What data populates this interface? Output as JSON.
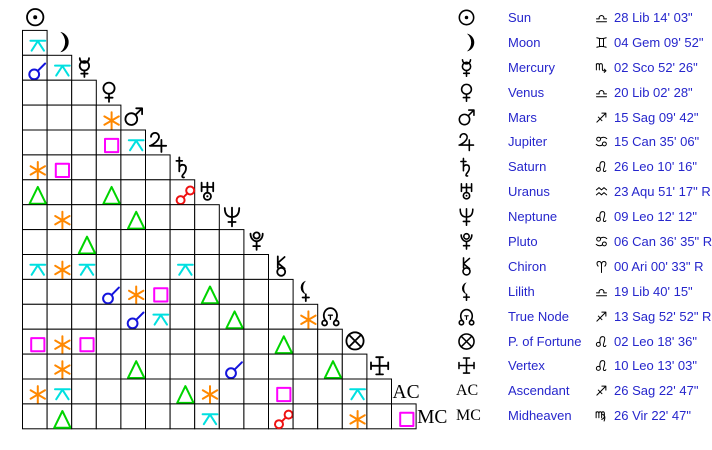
{
  "chart_data": {
    "type": "table",
    "description": "Astrological aspect grid (aspectarian) with planetary positions",
    "bodies": [
      {
        "id": "sun",
        "name": "Sun",
        "sign": "libra",
        "position": "28 Lib 14' 03\""
      },
      {
        "id": "moon",
        "name": "Moon",
        "sign": "gemini",
        "position": "04 Gem 09' 52\""
      },
      {
        "id": "mercury",
        "name": "Mercury",
        "sign": "scorpio",
        "position": "02 Sco 52' 26\""
      },
      {
        "id": "venus",
        "name": "Venus",
        "sign": "libra",
        "position": "20 Lib 02' 28\""
      },
      {
        "id": "mars",
        "name": "Mars",
        "sign": "sagittarius",
        "position": "15 Sag 09' 42\""
      },
      {
        "id": "jupiter",
        "name": "Jupiter",
        "sign": "cancer",
        "position": "15 Can 35' 06\""
      },
      {
        "id": "saturn",
        "name": "Saturn",
        "sign": "leo",
        "position": "26 Leo 10' 16\""
      },
      {
        "id": "uranus",
        "name": "Uranus",
        "sign": "aquarius",
        "position": "23 Aqu 51' 17\" R"
      },
      {
        "id": "neptune",
        "name": "Neptune",
        "sign": "leo",
        "position": "09 Leo 12' 12\""
      },
      {
        "id": "pluto",
        "name": "Pluto",
        "sign": "cancer",
        "position": "06 Can 36' 35\" R"
      },
      {
        "id": "chiron",
        "name": "Chiron",
        "sign": "aries",
        "position": "00 Ari 00' 33\" R"
      },
      {
        "id": "lilith",
        "name": "Lilith",
        "sign": "libra",
        "position": "19 Lib 40' 15\""
      },
      {
        "id": "truenode",
        "name": "True Node",
        "sign": "sagittarius",
        "position": "13 Sag 52' 52\" R"
      },
      {
        "id": "fortune",
        "name": "P. of Fortune",
        "sign": "leo",
        "position": "02 Leo 18' 36\""
      },
      {
        "id": "vertex",
        "name": "Vertex",
        "sign": "leo",
        "position": "10 Leo 13' 03\""
      },
      {
        "id": "ascendant",
        "name": "Ascendant",
        "sign": "sagittarius",
        "position": "26 Sag 22' 47\"",
        "label": "AC"
      },
      {
        "id": "midheaven",
        "name": "Midheaven",
        "sign": "virgo",
        "position": "26 Vir 22' 47\"",
        "label": "MC"
      }
    ],
    "aspects": [
      {
        "row": "moon",
        "col": "sun",
        "type": "quincunx"
      },
      {
        "row": "mercury",
        "col": "sun",
        "type": "conjunction"
      },
      {
        "row": "mercury",
        "col": "moon",
        "type": "quincunx"
      },
      {
        "row": "mars",
        "col": "venus",
        "type": "sextile"
      },
      {
        "row": "jupiter",
        "col": "venus",
        "type": "square"
      },
      {
        "row": "jupiter",
        "col": "mars",
        "type": "quincunx"
      },
      {
        "row": "saturn",
        "col": "sun",
        "type": "sextile"
      },
      {
        "row": "saturn",
        "col": "moon",
        "type": "square"
      },
      {
        "row": "uranus",
        "col": "sun",
        "type": "trine"
      },
      {
        "row": "uranus",
        "col": "venus",
        "type": "trine"
      },
      {
        "row": "uranus",
        "col": "saturn",
        "type": "opposition"
      },
      {
        "row": "neptune",
        "col": "moon",
        "type": "sextile"
      },
      {
        "row": "neptune",
        "col": "mars",
        "type": "trine"
      },
      {
        "row": "pluto",
        "col": "mercury",
        "type": "trine"
      },
      {
        "row": "chiron",
        "col": "sun",
        "type": "quincunx"
      },
      {
        "row": "chiron",
        "col": "moon",
        "type": "sextile"
      },
      {
        "row": "chiron",
        "col": "mercury",
        "type": "quincunx"
      },
      {
        "row": "chiron",
        "col": "saturn",
        "type": "quincunx"
      },
      {
        "row": "lilith",
        "col": "venus",
        "type": "conjunction"
      },
      {
        "row": "lilith",
        "col": "mars",
        "type": "sextile"
      },
      {
        "row": "lilith",
        "col": "jupiter",
        "type": "square"
      },
      {
        "row": "lilith",
        "col": "uranus",
        "type": "trine"
      },
      {
        "row": "truenode",
        "col": "mars",
        "type": "conjunction"
      },
      {
        "row": "truenode",
        "col": "jupiter",
        "type": "quincunx"
      },
      {
        "row": "truenode",
        "col": "neptune",
        "type": "trine"
      },
      {
        "row": "truenode",
        "col": "lilith",
        "type": "sextile"
      },
      {
        "row": "fortune",
        "col": "sun",
        "type": "square"
      },
      {
        "row": "fortune",
        "col": "moon",
        "type": "sextile"
      },
      {
        "row": "fortune",
        "col": "mercury",
        "type": "square"
      },
      {
        "row": "fortune",
        "col": "chiron",
        "type": "trine"
      },
      {
        "row": "vertex",
        "col": "moon",
        "type": "sextile"
      },
      {
        "row": "vertex",
        "col": "mars",
        "type": "trine"
      },
      {
        "row": "vertex",
        "col": "neptune",
        "type": "conjunction"
      },
      {
        "row": "vertex",
        "col": "truenode",
        "type": "trine"
      },
      {
        "row": "ascendant",
        "col": "sun",
        "type": "sextile"
      },
      {
        "row": "ascendant",
        "col": "moon",
        "type": "quincunx"
      },
      {
        "row": "ascendant",
        "col": "saturn",
        "type": "trine"
      },
      {
        "row": "ascendant",
        "col": "uranus",
        "type": "sextile"
      },
      {
        "row": "ascendant",
        "col": "chiron",
        "type": "square"
      },
      {
        "row": "ascendant",
        "col": "fortune",
        "type": "quincunx"
      },
      {
        "row": "midheaven",
        "col": "moon",
        "type": "trine"
      },
      {
        "row": "midheaven",
        "col": "uranus",
        "type": "quincunx"
      },
      {
        "row": "midheaven",
        "col": "chiron",
        "type": "opposition"
      },
      {
        "row": "midheaven",
        "col": "fortune",
        "type": "sextile"
      },
      {
        "row": "midheaven",
        "col": "ascendant",
        "type": "square"
      }
    ]
  },
  "colors": {
    "conjunction": "#1414dd",
    "opposition": "#ee1111",
    "trine": "#00d400",
    "square": "#ff00ff",
    "sextile": "#ff8800",
    "quincunx": "#00e0e0",
    "glyph": "#000000",
    "grid_line": "#000000",
    "legend_text": "#2626cc",
    "background": "#ffffff"
  }
}
